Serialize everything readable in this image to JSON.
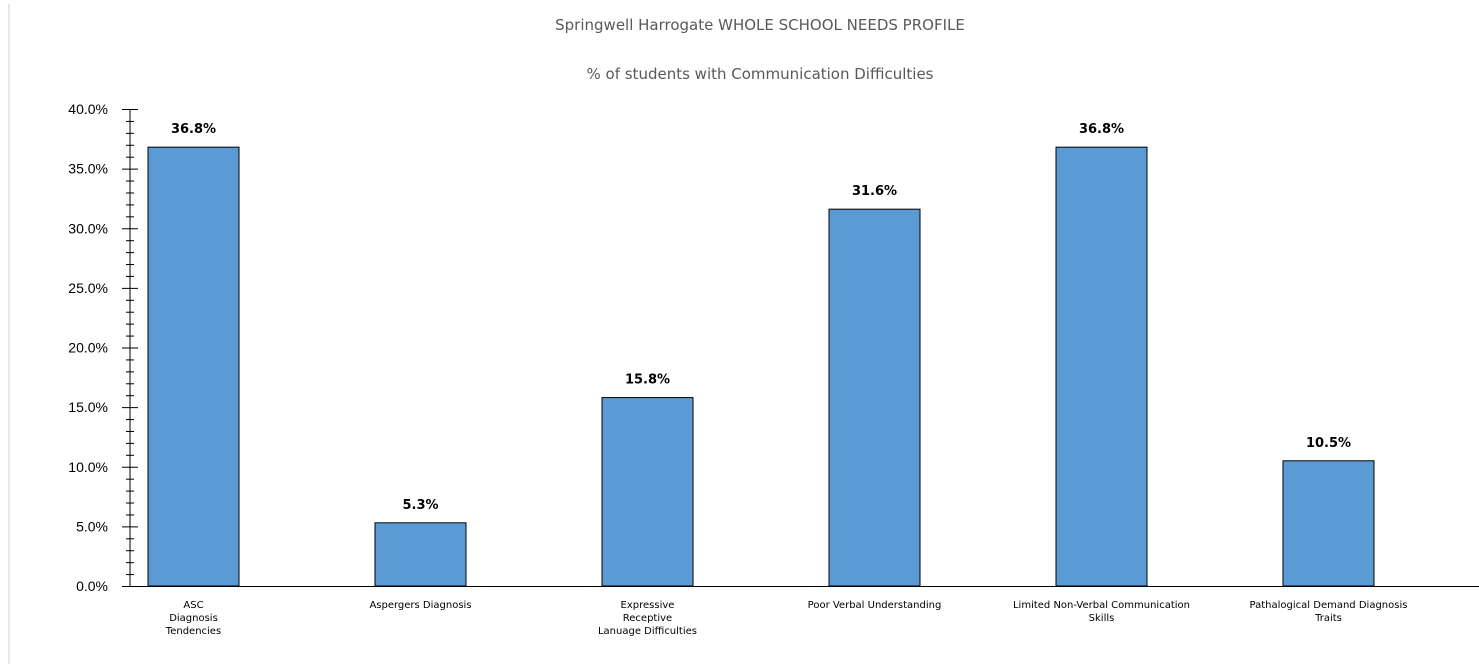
{
  "chart_data": {
    "type": "bar",
    "title": "Springwell Harrogate WHOLE SCHOOL NEEDS PROFILE",
    "subtitle": "% of students with Communication Difficulties",
    "categories": [
      [
        "ASC",
        "Diagnosis",
        "Tendencies"
      ],
      [
        "Aspergers Diagnosis"
      ],
      [
        "Expressive",
        "Receptive",
        "Lanuage Difficulties"
      ],
      [
        "Poor Verbal Understanding"
      ],
      [
        "Limited Non-Verbal Communication",
        "Skills"
      ],
      [
        "Pathalogical Demand Diagnosis",
        "Traits"
      ]
    ],
    "values": [
      36.8,
      5.3,
      15.8,
      31.6,
      36.8,
      10.5
    ],
    "data_labels": [
      "36.8%",
      "5.3%",
      "15.8%",
      "31.6%",
      "36.8%",
      "10.5%"
    ],
    "y_ticks": [
      "0.0%",
      "5.0%",
      "10.0%",
      "15.0%",
      "20.0%",
      "25.0%",
      "30.0%",
      "35.0%",
      "40.0%"
    ],
    "ylim": [
      0,
      40
    ],
    "grid": false,
    "legend": "none",
    "colors": {
      "bar_fill": "#5b9bd5",
      "bar_stroke": "#000000",
      "axis": "#000000",
      "title_text": "#595959"
    }
  }
}
